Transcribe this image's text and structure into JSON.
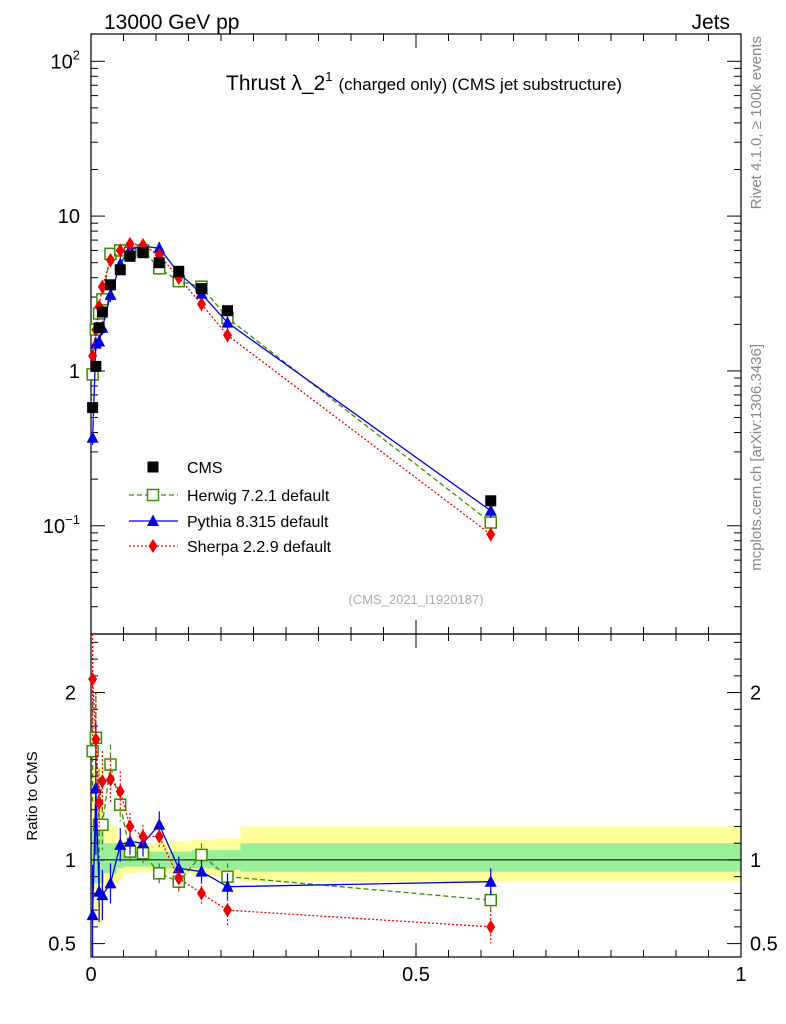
{
  "header": {
    "energy_label": "13000 GeV pp",
    "category_label": "Jets"
  },
  "side_labels": {
    "rivet": "Rivet 4.1.0, ≥ 100k events",
    "mcplots": "mcplots.cern.ch [arXiv:1306.3436]"
  },
  "chart_data": {
    "type": "scatter",
    "title_main": "Thrust λ_2",
    "title_sup": "1",
    "title_suffix": "(charged only) (CMS jet substructure)",
    "analysis_id": "(CMS_2021_I1920187)",
    "xlabel": "",
    "ylabel_ratio": "Ratio to CMS",
    "xlim": [
      0,
      1
    ],
    "ylim_main": [
      0.02,
      150
    ],
    "ylim_ratio": [
      0.42,
      2.35
    ],
    "main_y_ticks": [
      {
        "label": "10",
        "sup": "2",
        "value": 100
      },
      {
        "label": "10",
        "sup": "",
        "value": 10
      },
      {
        "label": "1",
        "sup": "",
        "value": 1
      },
      {
        "label": "10",
        "sup": "−1",
        "value": 0.1
      }
    ],
    "ratio_y_ticks": [
      {
        "label": "2",
        "value": 2
      },
      {
        "label": "1",
        "value": 1
      },
      {
        "label": "0.5",
        "value": 0.5
      }
    ],
    "x_ticks": [
      {
        "label": "0",
        "value": 0
      },
      {
        "label": "0.5",
        "value": 0.5
      },
      {
        "label": "1",
        "value": 1
      }
    ],
    "bands": [
      {
        "x0": 0.0,
        "x1": 0.02,
        "g": [
          0.86,
          1.18
        ],
        "y": [
          0.62,
          1.55
        ]
      },
      {
        "x0": 0.02,
        "x1": 0.04,
        "g": [
          0.92,
          1.1
        ],
        "y": [
          0.84,
          1.2
        ]
      },
      {
        "x0": 0.04,
        "x1": 0.05,
        "g": [
          0.95,
          1.06
        ],
        "y": [
          0.88,
          1.13
        ]
      },
      {
        "x0": 0.05,
        "x1": 0.07,
        "g": [
          0.96,
          1.05
        ],
        "y": [
          0.92,
          1.1
        ]
      },
      {
        "x0": 0.07,
        "x1": 0.1,
        "g": [
          0.96,
          1.05
        ],
        "y": [
          0.93,
          1.1
        ]
      },
      {
        "x0": 0.1,
        "x1": 0.12,
        "g": [
          0.95,
          1.05
        ],
        "y": [
          0.92,
          1.11
        ]
      },
      {
        "x0": 0.12,
        "x1": 0.155,
        "g": [
          0.95,
          1.05
        ],
        "y": [
          0.92,
          1.11
        ]
      },
      {
        "x0": 0.155,
        "x1": 0.19,
        "g": [
          0.95,
          1.06
        ],
        "y": [
          0.91,
          1.12
        ]
      },
      {
        "x0": 0.19,
        "x1": 0.23,
        "g": [
          0.94,
          1.06
        ],
        "y": [
          0.9,
          1.13
        ]
      },
      {
        "x0": 0.23,
        "x1": 1.0,
        "g": [
          0.93,
          1.1
        ],
        "y": [
          0.87,
          1.2
        ]
      }
    ],
    "series": [
      {
        "name": "CMS",
        "legend": "CMS",
        "color": "#000000",
        "marker": "square-filled",
        "line": "none",
        "x": [
          0.0025,
          0.0075,
          0.0125,
          0.0175,
          0.03,
          0.045,
          0.06,
          0.08,
          0.105,
          0.135,
          0.17,
          0.21,
          0.615
        ],
        "y": [
          0.58,
          1.07,
          1.9,
          2.4,
          3.6,
          4.5,
          5.5,
          5.8,
          5.0,
          4.4,
          3.4,
          2.45,
          0.145
        ],
        "ratio": [
          1,
          1,
          1,
          1,
          1,
          1,
          1,
          1,
          1,
          1,
          1,
          1,
          1
        ]
      },
      {
        "name": "Herwig",
        "legend": "Herwig 7.2.1 default",
        "color": "#3a8c00",
        "marker": "square-open",
        "line": "dashed",
        "x": [
          0.0025,
          0.0075,
          0.0125,
          0.0175,
          0.03,
          0.045,
          0.06,
          0.08,
          0.105,
          0.135,
          0.17,
          0.21,
          0.615
        ],
        "y": [
          0.95,
          1.85,
          2.35,
          2.9,
          5.7,
          6.0,
          5.8,
          6.0,
          4.6,
          3.8,
          3.5,
          2.2,
          0.105
        ],
        "ratio": [
          1.65,
          1.73,
          1.21,
          1.21,
          1.57,
          1.33,
          1.05,
          1.04,
          0.92,
          0.87,
          1.03,
          0.9,
          0.76
        ],
        "ratio_err": [
          0.3,
          0.25,
          0.2,
          0.15,
          0.12,
          0.1,
          0.06,
          0.06,
          0.06,
          0.06,
          0.07,
          0.08,
          0.06
        ]
      },
      {
        "name": "Pythia",
        "legend": "Pythia 8.315 default",
        "color": "#0000dd",
        "marker": "triangle",
        "line": "solid",
        "x": [
          0.0025,
          0.0075,
          0.0125,
          0.0175,
          0.03,
          0.045,
          0.06,
          0.08,
          0.105,
          0.135,
          0.17,
          0.21,
          0.615
        ],
        "y": [
          0.37,
          1.5,
          1.55,
          1.9,
          3.1,
          4.9,
          6.1,
          6.4,
          6.2,
          4.3,
          3.15,
          2.05,
          0.125
        ],
        "ratio": [
          0.67,
          1.43,
          0.81,
          0.79,
          0.86,
          1.09,
          1.11,
          1.1,
          1.21,
          0.95,
          0.93,
          0.84,
          0.87
        ],
        "ratio_err": [
          0.3,
          0.4,
          0.18,
          0.15,
          0.12,
          0.1,
          0.08,
          0.08,
          0.08,
          0.07,
          0.07,
          0.08,
          0.08
        ]
      },
      {
        "name": "Sherpa",
        "legend": "Sherpa 2.2.9 default",
        "color": "#ee0000",
        "marker": "diamond",
        "line": "dotted",
        "x": [
          0.0025,
          0.0075,
          0.0125,
          0.0175,
          0.03,
          0.045,
          0.06,
          0.08,
          0.105,
          0.135,
          0.17,
          0.21,
          0.615
        ],
        "y": [
          1.25,
          1.85,
          2.6,
          3.5,
          5.2,
          6.0,
          6.6,
          6.5,
          5.6,
          4.0,
          2.7,
          1.7,
          0.088
        ],
        "ratio": [
          2.08,
          1.72,
          1.34,
          1.47,
          1.48,
          1.41,
          1.2,
          1.14,
          1.14,
          0.89,
          0.8,
          0.7,
          0.6
        ],
        "ratio_err": [
          0.35,
          0.28,
          0.2,
          0.18,
          0.14,
          0.12,
          0.08,
          0.07,
          0.07,
          0.07,
          0.07,
          0.09,
          0.1
        ]
      }
    ]
  }
}
